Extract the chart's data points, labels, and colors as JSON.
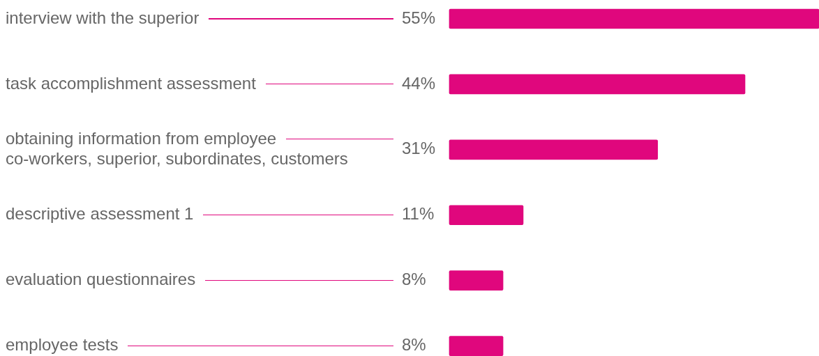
{
  "chart_data": {
    "type": "bar",
    "orientation": "horizontal",
    "categories": [
      "interview with the superior",
      "task accomplishment assessment",
      "obtaining information from employee\nco-workers, superior, subordinates, customers",
      "descriptive assessment 1",
      "evaluation questionnaires",
      "employee tests"
    ],
    "values": [
      55,
      44,
      31,
      11,
      8,
      8
    ],
    "value_labels": [
      "55%",
      "44%",
      "31%",
      "11%",
      "8%",
      "8%"
    ],
    "color": "#e0077d"
  }
}
